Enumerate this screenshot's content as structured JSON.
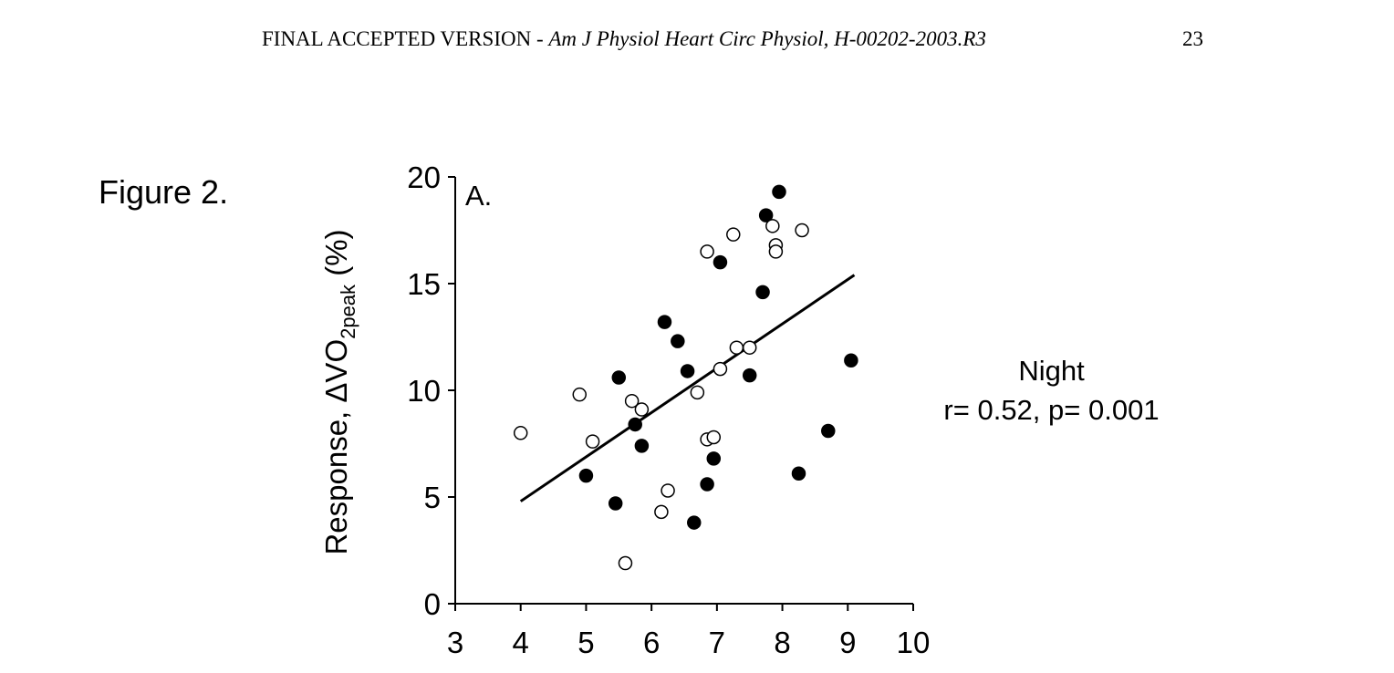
{
  "header": {
    "prefix": "FINAL ACCEPTED VERSION - ",
    "journal": "Am J Physiol Heart Circ Physiol, H-00202-2003.R3",
    "page_number": "23"
  },
  "figure": {
    "label": "Figure 2."
  },
  "chart_data": {
    "type": "scatter",
    "panel_label": "A.",
    "xlabel": "",
    "ylabel": {
      "prefix": "Response, ΔVO",
      "subscript": "2peak",
      "suffix": " (%)"
    },
    "xlim": [
      3,
      10
    ],
    "ylim": [
      0,
      20
    ],
    "xticks": [
      3,
      4,
      5,
      6,
      7,
      8,
      9,
      10
    ],
    "yticks": [
      0,
      5,
      10,
      15,
      20
    ],
    "grid": false,
    "series": [
      {
        "marker": "filled-circle",
        "color": "#000000",
        "x": [
          5.0,
          5.5,
          6.2,
          6.4,
          6.55,
          5.75,
          5.85,
          5.45,
          6.65,
          6.85,
          6.95,
          7.05,
          7.5,
          7.7,
          7.75,
          7.95,
          8.25,
          8.7,
          9.05
        ],
        "y": [
          6.0,
          10.6,
          13.2,
          12.3,
          10.9,
          8.4,
          7.4,
          4.7,
          3.8,
          5.6,
          6.8,
          16.0,
          10.7,
          14.6,
          18.2,
          19.3,
          6.1,
          8.1,
          11.4
        ]
      },
      {
        "marker": "open-circle",
        "color": "#000000",
        "x": [
          4.0,
          4.9,
          5.1,
          5.6,
          5.7,
          5.85,
          6.15,
          6.25,
          6.7,
          6.85,
          6.85,
          6.95,
          7.05,
          7.25,
          7.3,
          7.5,
          7.85,
          7.9,
          7.9,
          8.3
        ],
        "y": [
          8.0,
          9.8,
          7.6,
          1.9,
          9.5,
          9.1,
          4.3,
          5.3,
          9.9,
          16.5,
          7.7,
          7.8,
          11.0,
          17.3,
          12.0,
          12.0,
          17.7,
          16.8,
          16.5,
          17.5
        ]
      }
    ],
    "regression": {
      "x": [
        4.0,
        9.1
      ],
      "y": [
        4.8,
        15.4
      ]
    },
    "annotation": {
      "title": "Night",
      "stats": "r= 0.52, p= 0.001"
    }
  }
}
